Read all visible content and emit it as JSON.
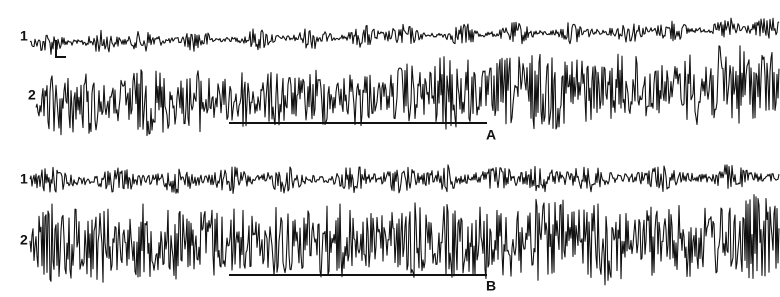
{
  "panels": [
    {
      "label": "A",
      "traces": [
        {
          "label": "1"
        },
        {
          "label": "2"
        }
      ]
    },
    {
      "label": "B",
      "traces": [
        {
          "label": "1"
        },
        {
          "label": "2"
        }
      ]
    }
  ]
}
